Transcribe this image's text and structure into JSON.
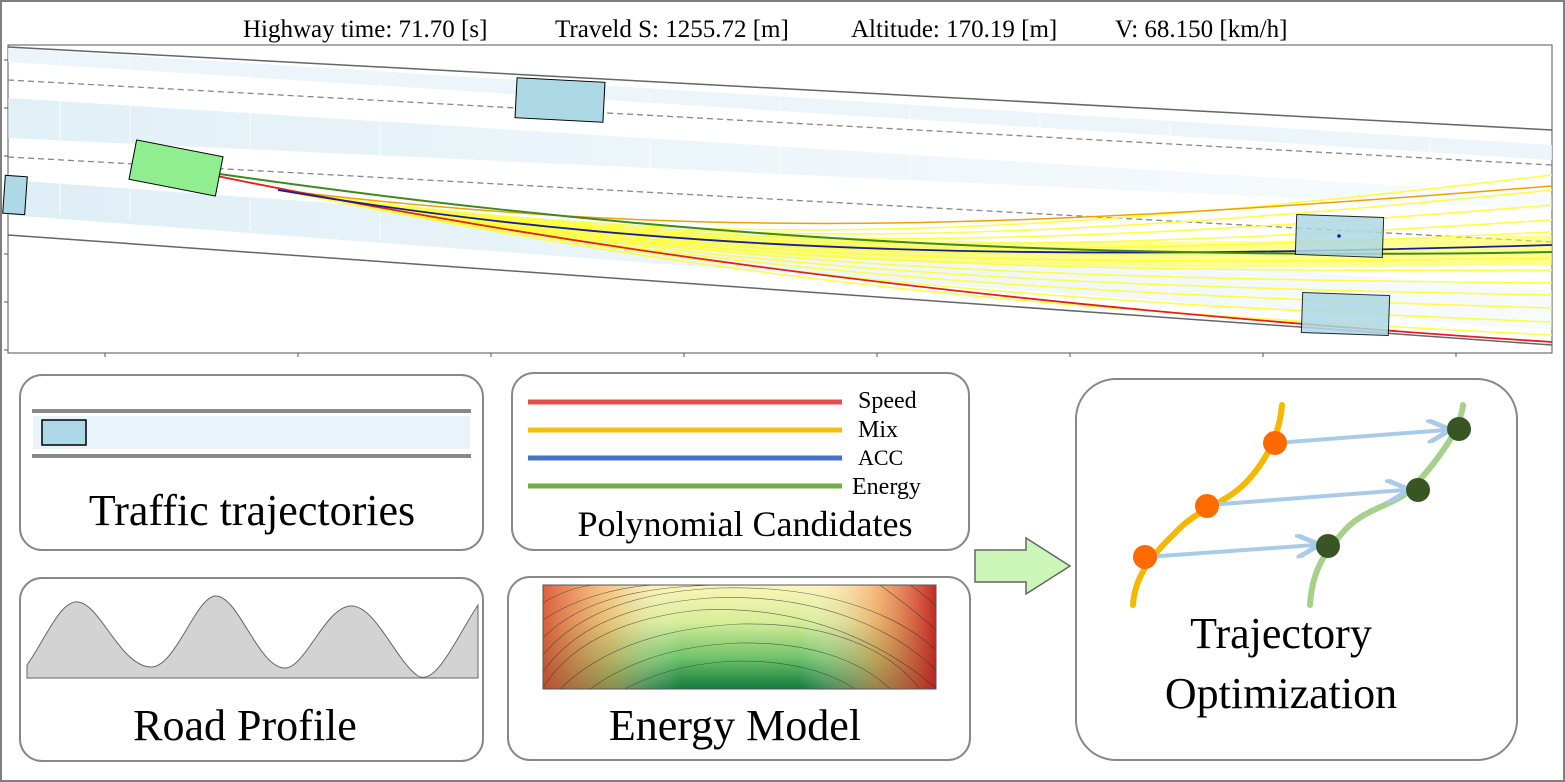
{
  "header": {
    "time_label": "Highway time: 71.70 [s]",
    "travel_label": "Traveld S: 1255.72 [m]",
    "altitude_label": "Altitude: 170.19 [m]",
    "velocity_label": "V: 68.150 [km/h]"
  },
  "panels": {
    "traffic": {
      "label": "Traffic trajectories"
    },
    "polynomial": {
      "label": "Polynomial Candidates",
      "legend": [
        {
          "name": "Speed",
          "color": "#e84c4c"
        },
        {
          "name": "Mix",
          "color": "#f5bd0c"
        },
        {
          "name": "ACC",
          "color": "#4472c4"
        },
        {
          "name": "Energy",
          "color": "#70ad47"
        }
      ]
    },
    "road_profile": {
      "label": "Road Profile"
    },
    "energy_model": {
      "label": "Energy Model"
    },
    "trajectory_optimization": {
      "label_line1": "Trajectory",
      "label_line2": "Optimization"
    }
  },
  "colors": {
    "ego_vehicle": "#90ee90",
    "other_vehicle": "#add8e6",
    "candidate": "#ffff33",
    "arrow_fill": "#ccf5b8",
    "orange_node": "#ff6a00",
    "green_node": "#375623"
  }
}
